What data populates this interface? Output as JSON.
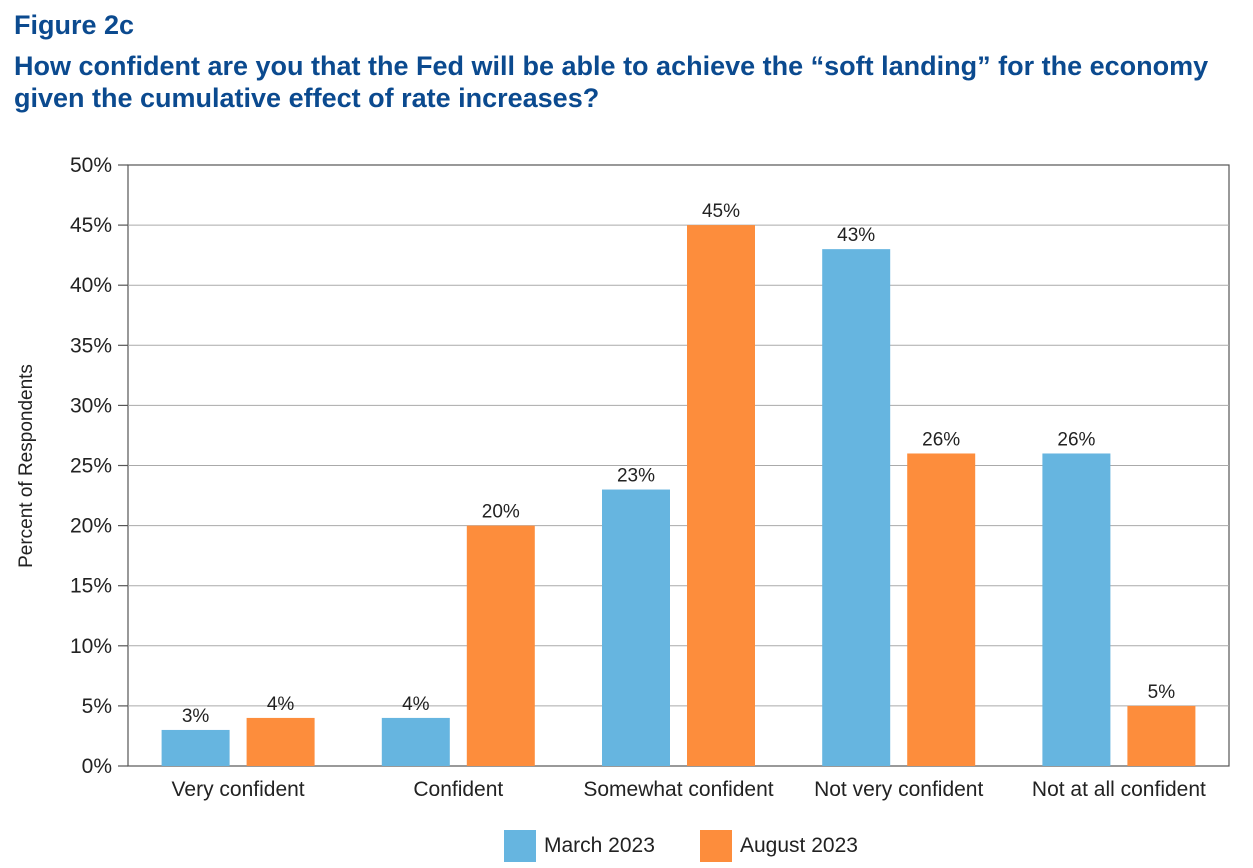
{
  "figure_label": "Figure 2c",
  "title": "How confident are you that the Fed will be able to achieve the “soft landing” for the economy given the cumulative effect of rate increases?",
  "chart_data": {
    "type": "bar",
    "categories": [
      "Very confident",
      "Confident",
      "Somewhat confident",
      "Not very confident",
      "Not at all confident"
    ],
    "series": [
      {
        "name": "March 2023",
        "color": "#66b5e0",
        "values": [
          3,
          4,
          23,
          43,
          26
        ],
        "labels": [
          "3%",
          "4%",
          "23%",
          "43%",
          "26%"
        ]
      },
      {
        "name": "August 2023",
        "color": "#fd8d3c",
        "values": [
          4,
          20,
          45,
          26,
          5
        ],
        "labels": [
          "4%",
          "20%",
          "45%",
          "26%",
          "5%"
        ]
      }
    ],
    "ylabel": "Percent of Respondents",
    "xlabel": "",
    "ylim": [
      0,
      50
    ],
    "yticks": [
      "0%",
      "5%",
      "10%",
      "15%",
      "20%",
      "25%",
      "30%",
      "35%",
      "40%",
      "45%",
      "50%"
    ],
    "grid": true,
    "legend_position": "bottom"
  }
}
